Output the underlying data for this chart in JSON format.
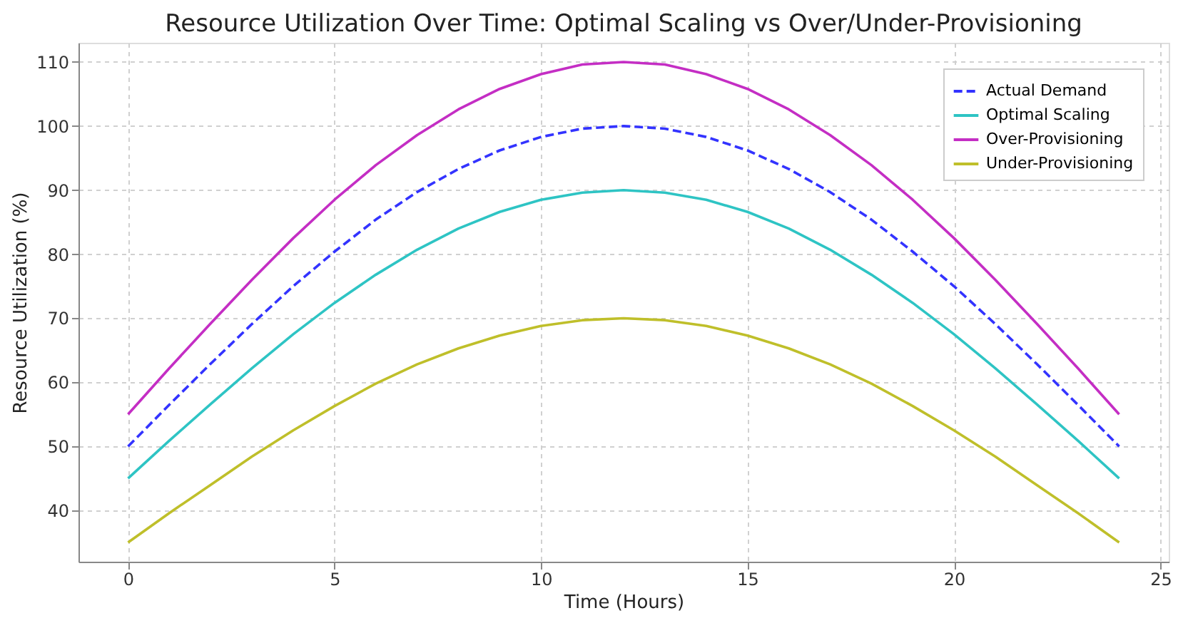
{
  "chart_data": {
    "type": "line",
    "title": "Resource Utilization Over Time: Optimal Scaling vs Over/Under-Provisioning",
    "xlabel": "Time (Hours)",
    "ylabel": "Resource Utilization (%)",
    "x": [
      0,
      1,
      2,
      3,
      4,
      5,
      6,
      7,
      8,
      9,
      10,
      11,
      12,
      13,
      14,
      15,
      16,
      17,
      18,
      19,
      20,
      21,
      22,
      23,
      24
    ],
    "series": [
      {
        "name": "Actual Demand",
        "color": "#3333ff",
        "line_style": "dashed",
        "values": [
          50,
          56.5,
          62.9,
          69.1,
          75,
          80.4,
          85.4,
          89.7,
          93.3,
          96.2,
          98.3,
          99.6,
          100,
          99.6,
          98.3,
          96.2,
          93.3,
          89.7,
          85.4,
          80.4,
          75,
          69.1,
          62.9,
          56.5,
          50
        ]
      },
      {
        "name": "Optimal Scaling",
        "color": "#2ec4c4",
        "line_style": "solid",
        "values": [
          45,
          50.9,
          56.6,
          62.2,
          67.5,
          72.4,
          76.8,
          80.7,
          84.0,
          86.6,
          88.5,
          89.6,
          90,
          89.6,
          88.5,
          86.6,
          84.0,
          80.7,
          76.8,
          72.4,
          67.5,
          62.2,
          56.6,
          50.9,
          45
        ]
      },
      {
        "name": "Over-Provisioning",
        "color": "#c42ec4",
        "line_style": "solid",
        "values": [
          55,
          62.2,
          69.2,
          76.0,
          82.5,
          88.5,
          93.9,
          98.6,
          102.6,
          105.8,
          108.1,
          109.6,
          110,
          109.6,
          108.1,
          105.8,
          102.6,
          98.6,
          93.9,
          88.5,
          82.5,
          76.0,
          69.2,
          62.2,
          55
        ]
      },
      {
        "name": "Under-Provisioning",
        "color": "#bfbf2a",
        "line_style": "solid",
        "values": [
          35,
          39.6,
          44.0,
          48.4,
          52.5,
          56.3,
          59.8,
          62.8,
          65.3,
          67.3,
          68.8,
          69.7,
          70,
          69.7,
          68.8,
          67.3,
          65.3,
          62.8,
          59.8,
          56.3,
          52.5,
          48.4,
          44.0,
          39.6,
          35
        ]
      }
    ],
    "xlim": [
      -1.2,
      25.2
    ],
    "xticks": [
      0,
      5,
      10,
      15,
      20,
      25
    ],
    "ylim": [
      32,
      113
    ],
    "yticks": [
      40,
      50,
      60,
      70,
      80,
      90,
      100,
      110
    ],
    "grid": true,
    "legend": "top right",
    "marker": "none"
  }
}
